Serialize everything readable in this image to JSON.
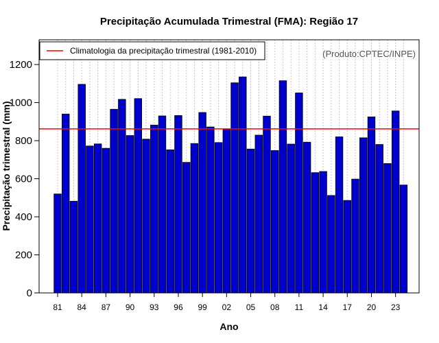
{
  "chart_data": {
    "type": "bar",
    "title": "Precipitação Acumulada Trimestral (FMA): Região 17",
    "xlabel": "Ano",
    "ylabel": "Precipitação trimestral (mm)",
    "source": "(Produto:CPTEC/INPE)",
    "ylim": [
      0,
      1330
    ],
    "yticks": [
      0,
      200,
      400,
      600,
      800,
      1000,
      1200
    ],
    "x_tick_labels": [
      "81",
      "84",
      "87",
      "90",
      "93",
      "96",
      "99",
      "02",
      "05",
      "08",
      "11",
      "14",
      "17",
      "20",
      "23"
    ],
    "categories": [
      "1981",
      "1982",
      "1983",
      "1984",
      "1985",
      "1986",
      "1987",
      "1988",
      "1989",
      "1990",
      "1991",
      "1992",
      "1993",
      "1994",
      "1995",
      "1996",
      "1997",
      "1998",
      "1999",
      "2000",
      "2001",
      "2002",
      "2003",
      "2004",
      "2005",
      "2006",
      "2007",
      "2008",
      "2009",
      "2010",
      "2011",
      "2012",
      "2013",
      "2014",
      "2015",
      "2016",
      "2017",
      "2018",
      "2019",
      "2020",
      "2021",
      "2022",
      "2023",
      "2024"
    ],
    "values": [
      520,
      940,
      482,
      1096,
      772,
      783,
      760,
      965,
      1017,
      827,
      1021,
      808,
      882,
      930,
      752,
      932,
      686,
      785,
      948,
      872,
      790,
      861,
      1104,
      1135,
      756,
      829,
      929,
      748,
      1115,
      782,
      1051,
      792,
      632,
      638,
      512,
      820,
      486,
      598,
      815,
      925,
      780,
      680,
      956,
      567
    ],
    "reference_line": {
      "label": "Climatologia da precipitação trimestral (1981-2010)",
      "value": 862,
      "color": "#ff0000"
    },
    "bar_color": "#0000cc",
    "legend_position": "top-left",
    "grid": "vertical-dotted"
  }
}
